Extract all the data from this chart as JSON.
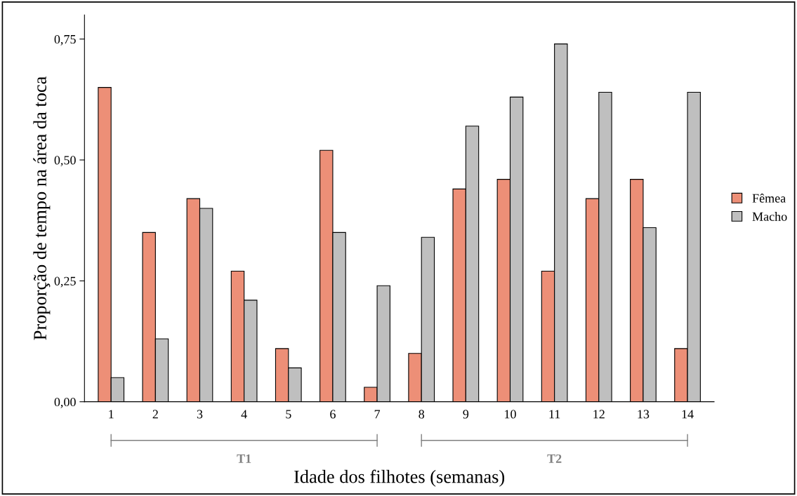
{
  "chart_data": {
    "type": "bar",
    "xlabel": "Idade dos filhotes (semanas)",
    "ylabel": "Proporção de tempo na área da toca",
    "categories": [
      "1",
      "2",
      "3",
      "4",
      "5",
      "6",
      "7",
      "8",
      "9",
      "10",
      "11",
      "12",
      "13",
      "14"
    ],
    "series": [
      {
        "name": "Fêmea",
        "color": "#ed8f77",
        "values": [
          0.65,
          0.35,
          0.42,
          0.27,
          0.11,
          0.52,
          0.03,
          0.1,
          0.44,
          0.46,
          0.27,
          0.42,
          0.46,
          0.11
        ]
      },
      {
        "name": "Macho",
        "color": "#bfbfbf",
        "values": [
          0.05,
          0.13,
          0.4,
          0.21,
          0.07,
          0.35,
          0.24,
          0.34,
          0.57,
          0.63,
          0.74,
          0.64,
          0.36,
          0.64
        ]
      }
    ],
    "ylim": [
      0,
      0.8
    ],
    "yticks": [
      {
        "value": 0,
        "label": "0,00"
      },
      {
        "value": 0.25,
        "label": "0,25"
      },
      {
        "value": 0.5,
        "label": "0,50"
      },
      {
        "value": 0.75,
        "label": "0,75"
      }
    ],
    "annotations": [
      "T1",
      "T2"
    ],
    "legend": "right",
    "grid": false
  }
}
